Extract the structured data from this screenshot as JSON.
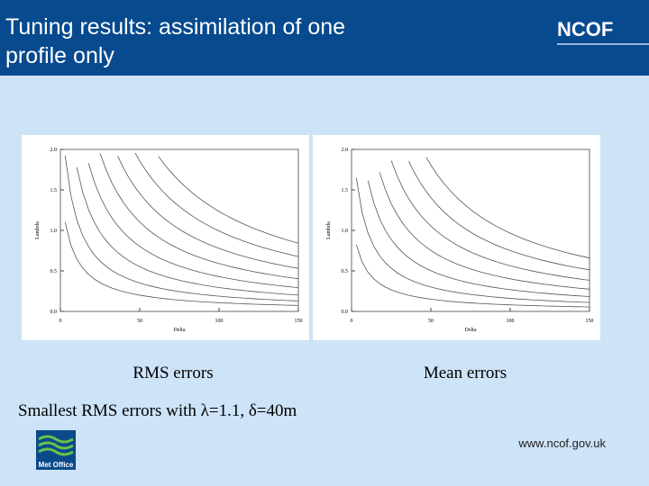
{
  "header": {
    "title": "Tuning results: assimilation of one profile only",
    "logo": "NCOF"
  },
  "plots": [
    {
      "xlabel": "Delta",
      "ylabel": "Lambda",
      "xticks": [
        "0",
        "50",
        "100",
        "150"
      ],
      "yticks": [
        "0.0",
        "0.5",
        "1.0",
        "1.5",
        "2.0"
      ],
      "caption": "RMS errors"
    },
    {
      "xlabel": "Delta",
      "ylabel": "Lambda",
      "xticks": [
        "0",
        "50",
        "100",
        "150"
      ],
      "yticks": [
        "0.0",
        "0.5",
        "1.0",
        "1.5",
        "2.0"
      ],
      "caption": "Mean errors"
    }
  ],
  "summary": "Smallest RMS errors with λ=1.1, δ=40m",
  "footer": {
    "url": "www.ncof.gov.uk",
    "logo": "Met Office"
  }
}
